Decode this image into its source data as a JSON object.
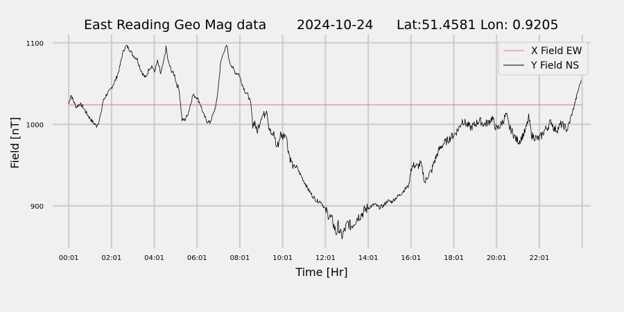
{
  "chart_data": {
    "type": "line",
    "title": {
      "name": "East Reading Geo Mag data",
      "date": "2024-10-24",
      "location": "Lat:51.4581  Lon: 0.9205"
    },
    "xlabel": "Time  [Hr]",
    "ylabel": "Field  [nT]",
    "x_unit": "hours since 00:01",
    "xlim": [
      -0.75,
      24.4
    ],
    "ylim": [
      848,
      1110
    ],
    "x_ticks": [
      {
        "x": 0,
        "label": "00:01"
      },
      {
        "x": 2,
        "label": "02:01"
      },
      {
        "x": 4,
        "label": "04:01"
      },
      {
        "x": 6,
        "label": "06:01"
      },
      {
        "x": 8,
        "label": "08:01"
      },
      {
        "x": 10,
        "label": "10:01"
      },
      {
        "x": 12,
        "label": "12:01"
      },
      {
        "x": 14,
        "label": "14:01"
      },
      {
        "x": 16,
        "label": "16:01"
      },
      {
        "x": 18,
        "label": "18:01"
      },
      {
        "x": 20,
        "label": "20:01"
      },
      {
        "x": 22,
        "label": "22:01"
      }
    ],
    "extra_vgrid_x": [
      24
    ],
    "y_ticks": [
      {
        "y": 900,
        "label": "900"
      },
      {
        "y": 1000,
        "label": "1000"
      },
      {
        "y": 1100,
        "label": "1100"
      }
    ],
    "grid": true,
    "legend_position": "top-right",
    "series": [
      {
        "name": "X Field EW",
        "color": "#e8706c",
        "x": [
          0,
          24
        ],
        "y": [
          1024,
          1024
        ]
      },
      {
        "name": "Y Field NS",
        "color": "#000000",
        "x": [
          0,
          0.1,
          0.2,
          0.35,
          0.5,
          0.65,
          0.8,
          1.0,
          1.15,
          1.3,
          1.4,
          1.5,
          1.6,
          1.75,
          1.9,
          2.0,
          2.1,
          2.2,
          2.3,
          2.4,
          2.5,
          2.6,
          2.7,
          2.85,
          3.0,
          3.2,
          3.35,
          3.5,
          3.6,
          3.75,
          3.9,
          4.0,
          4.15,
          4.3,
          4.45,
          4.55,
          4.65,
          4.8,
          4.95,
          5.05,
          5.15,
          5.3,
          5.45,
          5.6,
          5.8,
          6.0,
          6.15,
          6.3,
          6.45,
          6.6,
          6.75,
          6.9,
          7.0,
          7.1,
          7.25,
          7.4,
          7.5,
          7.65,
          7.8,
          7.95,
          8.1,
          8.25,
          8.4,
          8.5,
          8.6,
          8.7,
          8.8,
          9.0,
          9.15,
          9.25,
          9.35,
          9.5,
          9.6,
          9.7,
          9.8,
          9.9,
          10.0,
          10.15,
          10.25,
          10.35,
          10.5,
          10.65,
          10.8,
          11.0,
          11.2,
          11.4,
          11.6,
          11.8,
          12.0,
          12.2,
          12.35,
          12.5,
          12.6,
          12.75,
          12.9,
          13.05,
          13.2,
          13.35,
          13.5,
          13.7,
          13.9,
          14.1,
          14.3,
          14.5,
          14.7,
          14.9,
          15.1,
          15.3,
          15.5,
          15.7,
          15.9,
          16.0,
          16.15,
          16.3,
          16.45,
          16.55,
          16.65,
          16.8,
          16.95,
          17.1,
          17.3,
          17.5,
          17.7,
          17.9,
          18.1,
          18.25,
          18.4,
          18.6,
          18.8,
          19.0,
          19.2,
          19.4,
          19.6,
          19.8,
          19.9,
          20.0,
          20.15,
          20.3,
          20.45,
          20.6,
          20.75,
          20.9,
          21.05,
          21.2,
          21.35,
          21.5,
          21.65,
          21.8,
          21.95,
          22.1,
          22.25,
          22.4,
          22.55,
          22.7,
          22.85,
          23.0,
          23.15,
          23.3,
          23.45,
          23.6,
          23.75,
          23.85,
          23.95
        ],
        "y": [
          1025,
          1036,
          1030,
          1021,
          1025,
          1022,
          1015,
          1007,
          1002,
          998,
          1003,
          1012,
          1028,
          1036,
          1040,
          1045,
          1050,
          1055,
          1062,
          1072,
          1085,
          1093,
          1096,
          1092,
          1085,
          1080,
          1068,
          1060,
          1057,
          1068,
          1072,
          1064,
          1077,
          1062,
          1078,
          1094,
          1077,
          1066,
          1060,
          1048,
          1045,
          1005,
          1006,
          1015,
          1036,
          1033,
          1025,
          1012,
          1004,
          1002,
          1012,
          1025,
          1048,
          1075,
          1090,
          1096,
          1078,
          1070,
          1063,
          1062,
          1050,
          1040,
          1035,
          1026,
          1000,
          1003,
          990,
          1010,
          1012,
          1020,
          998,
          985,
          990,
          972,
          976,
          988,
          985,
          990,
          970,
          958,
          948,
          948,
          940,
          930,
          920,
          912,
          906,
          905,
          895,
          887,
          880,
          866,
          876,
          862,
          870,
          879,
          875,
          880,
          886,
          890,
          896,
          899,
          902,
          898,
          900,
          906,
          905,
          910,
          914,
          920,
          925,
          946,
          950,
          948,
          952,
          942,
          928,
          938,
          942,
          955,
          968,
          976,
          980,
          985,
          990,
          996,
          1005,
          1000,
          996,
          1000,
          1005,
          1000,
          1002,
          1008,
          1000,
          994,
          998,
          1004,
          1012,
          996,
          990,
          982,
          979,
          985,
          992,
          1008,
          986,
          984,
          982,
          986,
          993,
          997,
          1004,
          994,
          994,
          1000,
          998,
          993,
          1006,
          1020,
          1035,
          1045,
          1054
        ]
      }
    ]
  }
}
